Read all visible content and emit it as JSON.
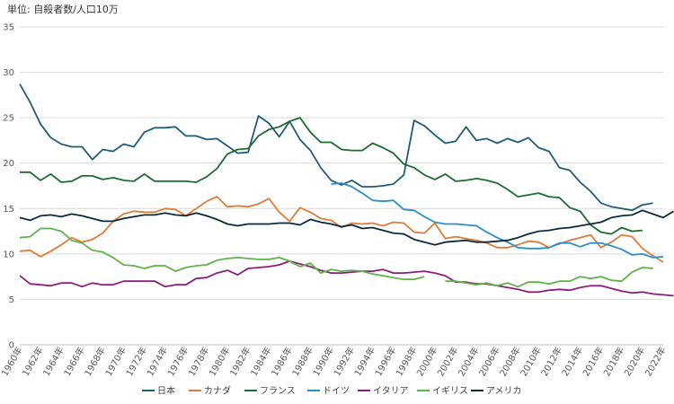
{
  "unit_label": "単位: 自殺者数/人口10万",
  "chart_data": {
    "type": "line",
    "title": "",
    "xlabel": "",
    "ylabel": "",
    "ylim": [
      0,
      35
    ],
    "y_ticks": [
      0,
      5,
      10,
      15,
      20,
      25,
      30,
      35
    ],
    "x_ticks": [
      "1960年",
      "1962年",
      "1964年",
      "1966年",
      "1968年",
      "1970年",
      "1972年",
      "1974年",
      "1976年",
      "1978年",
      "1980年",
      "1982年",
      "1984年",
      "1986年",
      "1988年",
      "1990年",
      "1992年",
      "1994年",
      "1996年",
      "1998年",
      "2000年",
      "2002年",
      "2004年",
      "2006年",
      "2008年",
      "2010年",
      "2012年",
      "2014年",
      "2016年",
      "2018年",
      "2020年",
      "2022年"
    ],
    "grid": "horizontal",
    "legend_position": "bottom",
    "series": [
      {
        "name": "日本",
        "color": "#1f5c7a",
        "x_start": 1960,
        "values": [
          28.7,
          26.7,
          24.3,
          22.8,
          22.1,
          21.8,
          21.8,
          20.4,
          21.5,
          21.3,
          22.1,
          21.8,
          23.4,
          23.9,
          23.9,
          24.0,
          23.0,
          23.0,
          22.6,
          22.7,
          21.9,
          21.1,
          21.2,
          25.2,
          24.4,
          22.9,
          24.6,
          22.6,
          21.4,
          19.5,
          18.1,
          17.6,
          18.1,
          17.4,
          17.4,
          17.5,
          17.7,
          18.7,
          24.7,
          24.1,
          23.1,
          22.2,
          22.4,
          24.0,
          22.5,
          22.7,
          22.2,
          22.7,
          22.3,
          22.8,
          21.7,
          21.3,
          19.5,
          19.2,
          17.9,
          16.9,
          15.6,
          15.2,
          15.0,
          14.8,
          15.4,
          15.6
        ]
      },
      {
        "name": "カナダ",
        "color": "#e07b39",
        "x_start": 1960,
        "values": [
          10.3,
          10.4,
          9.7,
          10.3,
          11.0,
          11.8,
          11.3,
          11.6,
          12.3,
          13.6,
          14.4,
          14.7,
          14.6,
          14.6,
          15.0,
          14.9,
          14.2,
          15.0,
          15.8,
          16.3,
          15.2,
          15.3,
          15.2,
          15.5,
          16.1,
          14.6,
          13.6,
          15.1,
          14.6,
          13.9,
          13.7,
          12.9,
          13.4,
          13.3,
          13.4,
          13.1,
          13.5,
          13.4,
          12.4,
          12.3,
          13.4,
          11.7,
          11.9,
          11.7,
          11.5,
          11.2,
          10.7,
          10.7,
          11.0,
          11.4,
          11.3,
          10.7,
          11.1,
          11.5,
          11.8,
          12.1,
          10.7,
          11.3,
          12.1,
          11.9,
          10.6,
          9.8,
          9.1
        ]
      },
      {
        "name": "フランス",
        "color": "#1e6b2e",
        "x_start": 1960,
        "values": [
          19.0,
          19.0,
          18.1,
          18.8,
          17.9,
          18.0,
          18.6,
          18.6,
          18.2,
          18.4,
          18.1,
          18.0,
          18.8,
          18.0,
          18.0,
          18.0,
          18.0,
          17.9,
          18.5,
          19.4,
          21.0,
          21.5,
          21.6,
          23.0,
          23.7,
          24.0,
          24.6,
          25.0,
          23.4,
          22.3,
          22.3,
          21.5,
          21.4,
          21.4,
          22.2,
          21.7,
          21.1,
          19.9,
          19.5,
          18.7,
          18.2,
          18.8,
          18.0,
          18.1,
          18.3,
          18.1,
          17.8,
          17.1,
          16.3,
          16.5,
          16.7,
          16.3,
          16.2,
          15.1,
          14.7,
          13.2,
          12.4,
          12.2,
          12.9,
          12.5,
          12.6
        ]
      },
      {
        "name": "ドイツ",
        "color": "#2a8fc7",
        "x_start": 1990,
        "values": [
          17.7,
          17.8,
          17.4,
          16.7,
          15.9,
          15.8,
          15.9,
          14.9,
          14.8,
          14.1,
          13.5,
          13.3,
          13.3,
          13.2,
          13.1,
          12.4,
          11.8,
          11.3,
          10.7,
          10.6,
          10.6,
          10.7,
          11.2,
          11.2,
          10.8,
          11.2,
          11.2,
          10.9,
          10.5,
          9.9,
          10.0,
          9.6,
          9.7
        ]
      },
      {
        "name": "イタリア",
        "color": "#8c1f7a",
        "x_start": 1960,
        "values": [
          7.6,
          6.7,
          6.6,
          6.5,
          6.8,
          6.8,
          6.4,
          6.8,
          6.6,
          6.6,
          7.0,
          7.0,
          7.0,
          7.0,
          6.4,
          6.6,
          6.6,
          7.3,
          7.4,
          7.9,
          8.2,
          7.7,
          8.4,
          8.5,
          8.6,
          8.8,
          9.2,
          8.9,
          8.6,
          8.2,
          7.9,
          7.9,
          8.0,
          8.1,
          8.1,
          8.3,
          7.9,
          7.9,
          8.0,
          8.1,
          7.9,
          7.6,
          6.9,
          6.9,
          6.7,
          6.7,
          6.5,
          6.3,
          6.1,
          5.8,
          5.8,
          6.0,
          6.1,
          6.0,
          6.3,
          6.5,
          6.5,
          6.2,
          5.9,
          5.7,
          5.8,
          5.6,
          5.5,
          5.4
        ]
      },
      {
        "name": "イギリス",
        "color": "#5fb34a",
        "x_start": 1960,
        "values": [
          11.8,
          11.9,
          12.8,
          12.8,
          12.5,
          11.5,
          11.2,
          10.4,
          10.2,
          9.6,
          8.8,
          8.7,
          8.4,
          8.7,
          8.7,
          8.1,
          8.5,
          8.7,
          8.8,
          9.3,
          9.5,
          9.6,
          9.5,
          9.4,
          9.4,
          9.6,
          9.2,
          8.6,
          9.0,
          7.9,
          8.3,
          8.1,
          8.2,
          8.1,
          7.8,
          7.6,
          7.4,
          7.2,
          7.2,
          7.5,
          null,
          7.0,
          7.0,
          6.8,
          6.6,
          6.8,
          6.5,
          6.8,
          6.4,
          6.9,
          6.9,
          6.7,
          7.0,
          7.0,
          7.5,
          7.3,
          7.5,
          7.1,
          7.0,
          8.0,
          8.5,
          8.4
        ]
      },
      {
        "name": "アメリカ",
        "color": "#0d2a3d",
        "x_start": 1960,
        "values": [
          14.0,
          13.7,
          14.2,
          14.3,
          14.1,
          14.4,
          14.2,
          13.9,
          13.6,
          13.6,
          13.9,
          14.1,
          14.3,
          14.3,
          14.5,
          14.3,
          14.2,
          14.5,
          14.2,
          13.8,
          13.3,
          13.1,
          13.3,
          13.3,
          13.3,
          13.4,
          13.4,
          13.2,
          13.8,
          13.5,
          13.3,
          13.0,
          13.2,
          12.8,
          12.9,
          12.6,
          12.3,
          12.2,
          11.6,
          11.3,
          11.0,
          11.3,
          11.4,
          11.5,
          11.3,
          11.3,
          11.4,
          11.5,
          11.8,
          12.2,
          12.5,
          12.6,
          12.8,
          12.9,
          13.1,
          13.3,
          13.5,
          14.0,
          14.2,
          14.3,
          14.8,
          14.4,
          14.0,
          14.7
        ]
      }
    ]
  }
}
